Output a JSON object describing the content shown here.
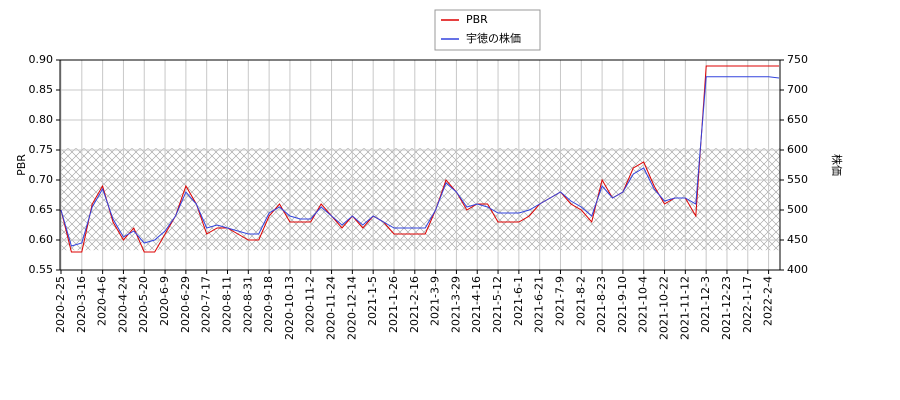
{
  "chart_data": {
    "type": "line",
    "categories": [
      "2020-2-25",
      null,
      "2020-3-16",
      null,
      "2020-4-6",
      null,
      "2020-4-24",
      null,
      "2020-5-20",
      null,
      "2020-6-9",
      null,
      "2020-6-29",
      null,
      "2020-7-17",
      null,
      "2020-8-11",
      null,
      "2020-8-31",
      null,
      "2020-9-18",
      null,
      "2020-10-13",
      null,
      "2020-11-2",
      null,
      "2020-11-24",
      null,
      "2020-12-14",
      null,
      "2021-1-5",
      null,
      "2021-1-26",
      null,
      "2021-2-16",
      null,
      "2021-3-9",
      null,
      "2021-3-29",
      null,
      "2021-4-16",
      null,
      "2021-5-12",
      null,
      "2021-6-1",
      null,
      "2021-6-21",
      null,
      "2021-7-9",
      null,
      "2021-8-2",
      null,
      "2021-8-23",
      null,
      "2021-9-10",
      null,
      "2021-10-4",
      null,
      "2021-10-22",
      null,
      "2021-11-12",
      null,
      "2021-12-3",
      null,
      "2021-12-23",
      null,
      "2022-1-17",
      null,
      "2022-2-4",
      null
    ],
    "series": [
      {
        "name": "PBR",
        "color": "#dd0000",
        "axis": "y",
        "values": [
          0.65,
          0.58,
          0.58,
          0.66,
          0.69,
          0.63,
          0.6,
          0.62,
          0.58,
          0.58,
          0.61,
          0.64,
          0.69,
          0.66,
          0.61,
          0.62,
          0.62,
          0.61,
          0.6,
          0.6,
          0.64,
          0.66,
          0.63,
          0.63,
          0.63,
          0.66,
          0.64,
          0.62,
          0.64,
          0.62,
          0.64,
          0.63,
          0.61,
          0.61,
          0.61,
          0.61,
          0.65,
          0.7,
          0.68,
          0.65,
          0.66,
          0.66,
          0.63,
          0.63,
          0.63,
          0.64,
          0.66,
          0.67,
          0.68,
          0.66,
          0.65,
          0.63,
          0.7,
          0.67,
          0.68,
          0.72,
          0.73,
          0.69,
          0.66,
          0.67,
          0.67,
          0.64,
          0.89,
          0.89,
          0.89,
          0.89,
          0.89,
          0.89,
          0.89,
          0.89
        ]
      },
      {
        "name": "宇徳の株価",
        "color": "#3344dd",
        "axis": "y2",
        "values": [
          500,
          440,
          445,
          505,
          535,
          485,
          455,
          465,
          445,
          450,
          465,
          490,
          530,
          510,
          470,
          475,
          470,
          465,
          460,
          460,
          495,
          505,
          490,
          485,
          485,
          505,
          490,
          475,
          490,
          475,
          490,
          480,
          470,
          470,
          470,
          470,
          500,
          545,
          530,
          505,
          510,
          505,
          495,
          495,
          495,
          500,
          510,
          520,
          530,
          515,
          505,
          490,
          540,
          520,
          530,
          560,
          570,
          535,
          515,
          520,
          520,
          510,
          722,
          722,
          722,
          722,
          722,
          722,
          722,
          720
        ]
      }
    ],
    "ylabel": "PBR",
    "y2label": "株価",
    "ylim": [
      0.55,
      0.9
    ],
    "yticks": [
      {
        "value": 0.55,
        "label": "0.55"
      },
      {
        "value": 0.6,
        "label": "0.60"
      },
      {
        "value": 0.65,
        "label": "0.65"
      },
      {
        "value": 0.7,
        "label": "0.70"
      },
      {
        "value": 0.75,
        "label": "0.75"
      },
      {
        "value": 0.8,
        "label": "0.80"
      },
      {
        "value": 0.85,
        "label": "0.85"
      },
      {
        "value": 0.9,
        "label": "0.90"
      }
    ],
    "y2lim": [
      400,
      750
    ],
    "y2ticks": [
      400,
      450,
      500,
      550,
      600,
      650,
      700,
      750
    ],
    "shaded_range": [
      0.583,
      0.753
    ],
    "grid": true,
    "legend": "top"
  }
}
